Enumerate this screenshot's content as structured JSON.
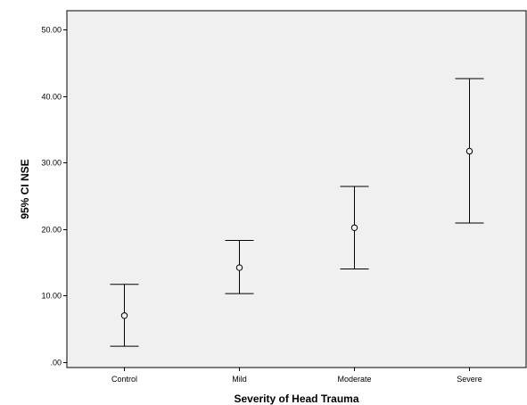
{
  "chart_data": {
    "type": "errorbar",
    "title": "",
    "xlabel": "Severity of Head Trauma",
    "ylabel": "95% CI NSE",
    "categories": [
      "Control",
      "Mild",
      "Moderate",
      "Severe"
    ],
    "means": [
      7.0,
      14.2,
      20.2,
      31.7
    ],
    "ci_lower": [
      2.4,
      10.3,
      14.0,
      20.9
    ],
    "ci_upper": [
      11.7,
      18.3,
      26.4,
      42.6
    ],
    "ylim": [
      -0.8,
      52.8
    ],
    "yticks": [
      0,
      10,
      20,
      30,
      40,
      50
    ],
    "ytick_labels": [
      ".00",
      "10.00",
      "20.00",
      "30.00",
      "40.00",
      "50.00"
    ],
    "grid": false,
    "colors": {
      "plot_background": "#f0f0f0",
      "axis": "#000000",
      "marker": "#000000"
    }
  }
}
